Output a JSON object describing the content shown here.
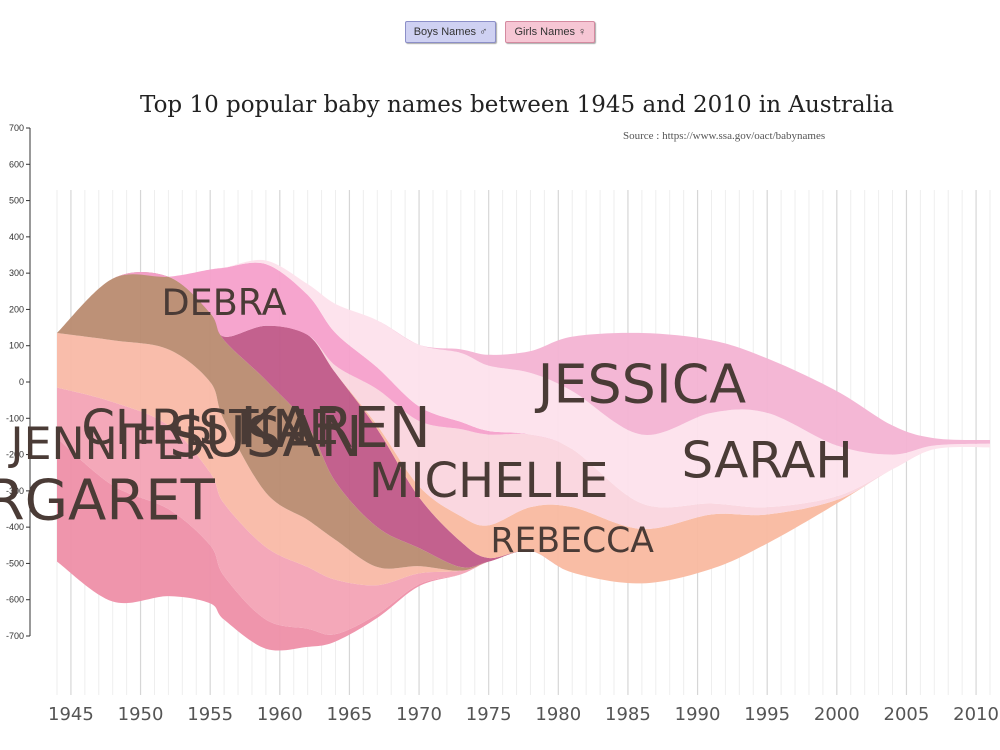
{
  "controls": {
    "boys_label": "Boys Names ♂",
    "girls_label": "Girls Names ♀"
  },
  "chart_data": {
    "type": "area",
    "subtype": "streamgraph",
    "title": "Top 10 popular baby names between 1945 and 2010 in Australia",
    "subtitle": "Source : https://www.ssa.gov/oact/babynames",
    "xlabel": "",
    "ylabel": "",
    "xlim": [
      1944,
      2011
    ],
    "ylim": [
      -700,
      700
    ],
    "y_ticks": [
      700,
      600,
      500,
      400,
      300,
      200,
      100,
      0,
      -100,
      -200,
      -300,
      -400,
      -500,
      -600,
      -700
    ],
    "x_ticks": [
      1945,
      1950,
      1955,
      1960,
      1965,
      1970,
      1975,
      1980,
      1985,
      1990,
      1995,
      2000,
      2005,
      2010
    ],
    "grid": "vertical",
    "x": [
      1944,
      1948,
      1952,
      1955,
      1956,
      1959,
      1962,
      1964,
      1967,
      1970,
      1973,
      1975,
      1978,
      1981,
      1986,
      1991,
      1995,
      2000,
      2004,
      2007,
      2011
    ],
    "series": [
      {
        "name": "MARGARET",
        "color": "#ee8fa8",
        "values": [
          340,
          320,
          240,
          160,
          120,
          80,
          50,
          20,
          10,
          5,
          0,
          0,
          0,
          0,
          0,
          0,
          0,
          0,
          0,
          0,
          0
        ]
      },
      {
        "name": "JENNIFER",
        "color": "#f3a3b5",
        "values": [
          140,
          230,
          230,
          200,
          200,
          200,
          170,
          150,
          80,
          30,
          10,
          0,
          0,
          0,
          0,
          0,
          0,
          0,
          0,
          0,
          0
        ]
      },
      {
        "name": "CHRISTINE",
        "color": "#f9b9a6",
        "values": [
          150,
          170,
          210,
          250,
          230,
          150,
          130,
          110,
          50,
          20,
          0,
          0,
          0,
          0,
          0,
          0,
          0,
          0,
          0,
          0,
          0
        ]
      },
      {
        "name": "SUSAN",
        "color": "#b98b70",
        "values": [
          0,
          170,
          200,
          190,
          220,
          310,
          260,
          160,
          110,
          50,
          10,
          0,
          0,
          0,
          0,
          0,
          0,
          0,
          0,
          0,
          0
        ]
      },
      {
        "name": "KAREN",
        "color": "#c05888",
        "values": [
          0,
          0,
          0,
          0,
          10,
          150,
          250,
          300,
          270,
          140,
          70,
          10,
          0,
          0,
          0,
          0,
          0,
          0,
          0,
          0,
          0
        ]
      },
      {
        "name": "REBECCA",
        "color": "#f9b9a0",
        "values": [
          0,
          0,
          0,
          0,
          0,
          0,
          0,
          0,
          10,
          30,
          70,
          90,
          120,
          180,
          150,
          150,
          80,
          10,
          0,
          0,
          0
        ]
      },
      {
        "name": "MICHELLE",
        "color": "#fad5de",
        "values": [
          0,
          0,
          0,
          0,
          0,
          0,
          0,
          20,
          100,
          180,
          240,
          250,
          200,
          160,
          70,
          30,
          20,
          10,
          0,
          0,
          0
        ]
      },
      {
        "name": "DEBRA",
        "color": "#f5a0cb",
        "values": [
          0,
          0,
          0,
          120,
          190,
          170,
          110,
          90,
          60,
          40,
          20,
          10,
          0,
          0,
          0,
          0,
          0,
          0,
          0,
          0,
          0
        ]
      },
      {
        "name": "SARAH",
        "color": "#fde2ec",
        "values": [
          0,
          0,
          0,
          0,
          0,
          10,
          30,
          80,
          130,
          170,
          190,
          180,
          170,
          160,
          190,
          250,
          260,
          140,
          40,
          10,
          10
        ]
      },
      {
        "name": "JESSICA",
        "color": "#f3b3d3",
        "values": [
          0,
          0,
          0,
          0,
          0,
          0,
          0,
          0,
          0,
          0,
          10,
          30,
          60,
          150,
          280,
          200,
          150,
          150,
          80,
          20,
          10
        ]
      }
    ],
    "center_line": [
      -180,
      -160,
      -150,
      -150,
      -170,
      -200,
      -230,
      -250,
      -240,
      -230,
      -220,
      -210,
      -190,
      -200,
      -210,
      -200,
      -190,
      -180,
      -180,
      -170,
      -170
    ]
  }
}
